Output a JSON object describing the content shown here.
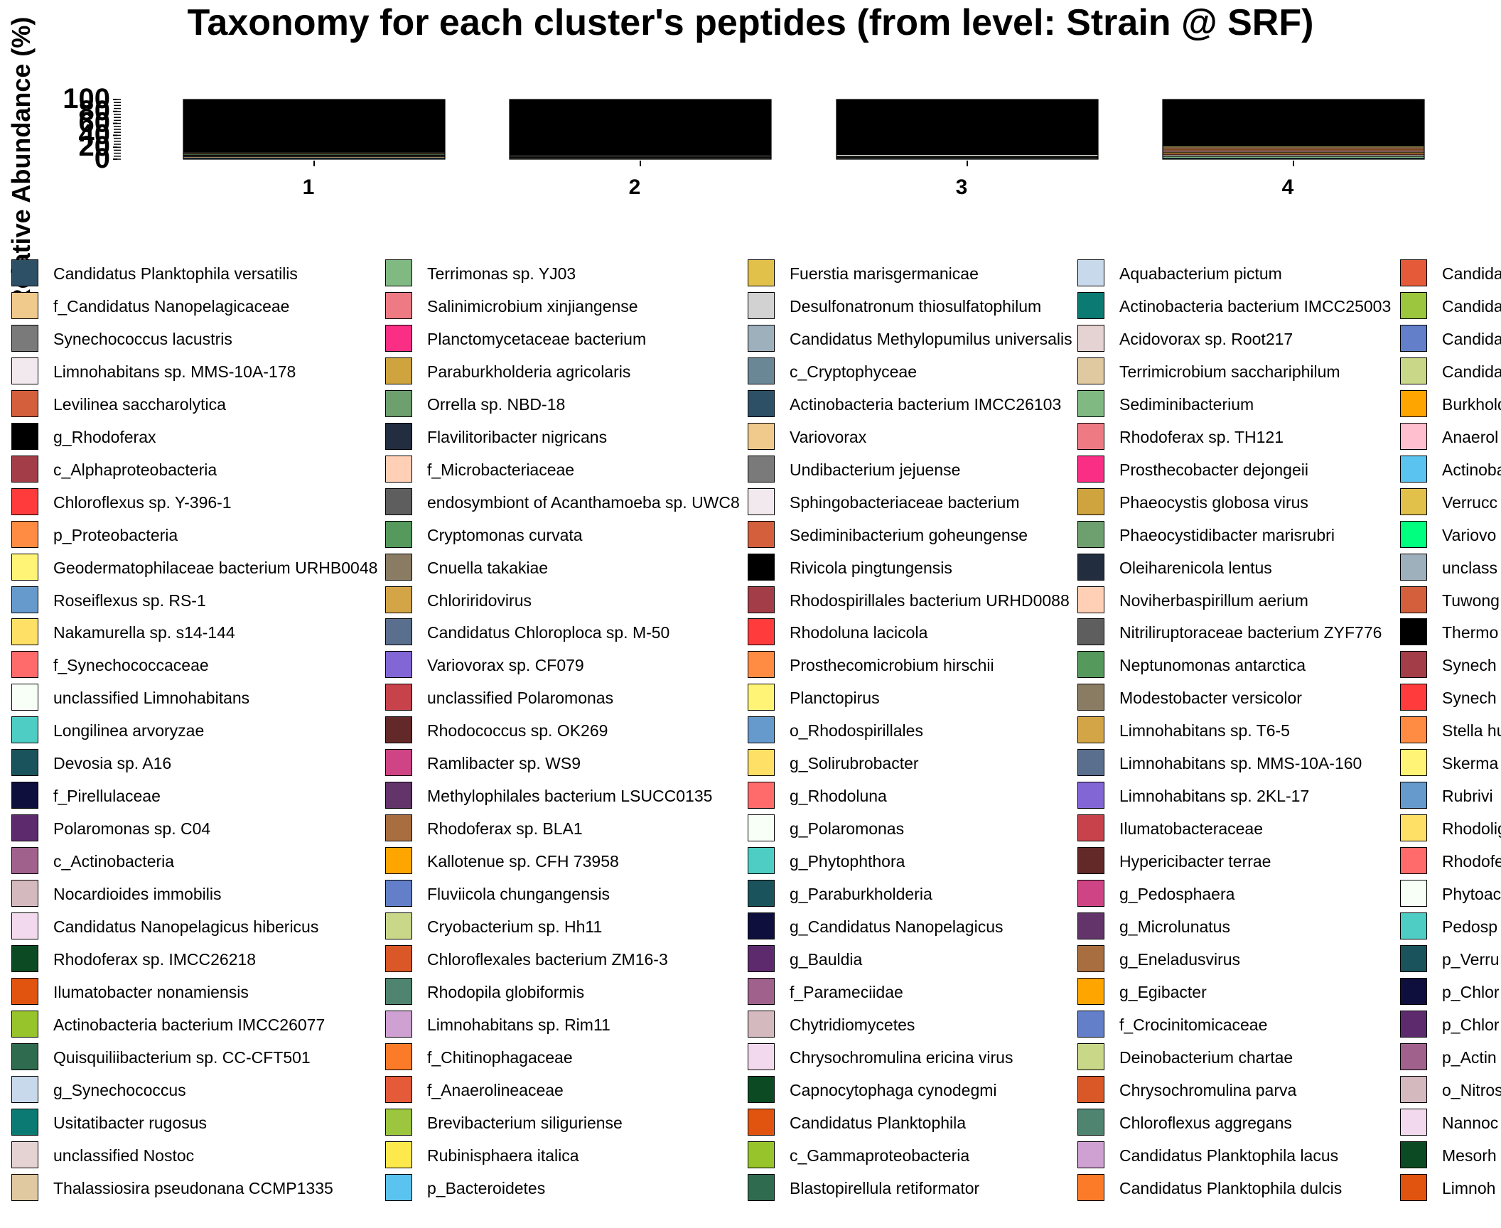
{
  "chart_data": {
    "type": "bar",
    "title": "Taxonomy for each cluster's peptides (from level: Strain @ SRF)",
    "ylabel": "Relative Abundance (%)",
    "xlabel": "",
    "categories": [
      "1",
      "2",
      "3",
      "4"
    ],
    "y_tick_labels": [
      "100",
      "80",
      "60",
      "40",
      "20",
      "0"
    ],
    "ylim": [
      0,
      100
    ],
    "stacked": true,
    "dominant_series": "g_Rhodoferax",
    "bar_stacks": [
      [
        {
          "name": "Candidatus Planktophila versatilis",
          "value": 2.2
        },
        {
          "name": "f_Candidatus Nanopelagicaceae",
          "value": 1.6
        },
        {
          "name": "Synechococcus lacustris",
          "value": 1.2
        },
        {
          "name": "Limnohabitans sp. MMS-10A-178",
          "value": 0.9
        },
        {
          "name": "Levilinea saccharolytica",
          "value": 0.8
        },
        {
          "name": "Terrimonas sp. YJ03",
          "value": 1.5
        },
        {
          "name": "Salinimicrobium xinjiangense",
          "value": 0.9
        },
        {
          "name": "Fuerstia marisgermanicae",
          "value": 1.2
        },
        {
          "name": "Desulfonatronum thiosulfatophilum",
          "value": 1.0
        },
        {
          "name": "Aquabacterium pictum",
          "value": 0.8
        },
        {
          "name": "g_Rhodoferax",
          "value": 87.9
        }
      ],
      [
        {
          "name": "Candidatus Planktophila versatilis",
          "value": 1.4
        },
        {
          "name": "f_Candidatus Nanopelagicaceae",
          "value": 1.2
        },
        {
          "name": "Synechococcus lacustris",
          "value": 0.8
        },
        {
          "name": "Limnohabitans sp. MMS-10A-178",
          "value": 1.0
        },
        {
          "name": "Levilinea saccharolytica",
          "value": 0.6
        },
        {
          "name": "Fuerstia marisgermanicae",
          "value": 0.8
        },
        {
          "name": "Desulfonatronum thiosulfatophilum",
          "value": 0.8
        },
        {
          "name": "Aquabacterium pictum",
          "value": 1.0
        },
        {
          "name": "g_Rhodoferax",
          "value": 92.4
        }
      ],
      [
        {
          "name": "Candidatus Planktophila versatilis",
          "value": 1.6
        },
        {
          "name": "f_Candidatus Nanopelagicaceae",
          "value": 1.0
        },
        {
          "name": "Synechococcus lacustris",
          "value": 1.0
        },
        {
          "name": "Limnohabitans sp. MMS-10A-178",
          "value": 0.8
        },
        {
          "name": "Terrimonas sp. YJ03",
          "value": 1.2
        },
        {
          "name": "Sphingobacteriaceae bacterium",
          "value": 2.0
        },
        {
          "name": "g_Rhodoferax",
          "value": 92.4
        }
      ],
      [
        {
          "name": "Candidatus Planktophila versatilis",
          "value": 2.0
        },
        {
          "name": "Terrimonas sp. YJ03",
          "value": 2.5
        },
        {
          "name": "Synechococcus lacustris",
          "value": 1.5
        },
        {
          "name": "Limnohabitans sp. MMS-10A-178",
          "value": 1.5
        },
        {
          "name": "Levilinea saccharolytica",
          "value": 2.0
        },
        {
          "name": "Fuerstia marisgermanicae",
          "value": 2.0
        },
        {
          "name": "Salinimicrobium xinjiangense",
          "value": 1.5
        },
        {
          "name": "Aquabacterium pictum",
          "value": 1.5
        },
        {
          "name": "p_Proteobacteria",
          "value": 2.0
        },
        {
          "name": "Levilinea saccharolytica",
          "value": 1.5
        },
        {
          "name": "f_Candidatus Nanopelagicaceae",
          "value": 2.0
        },
        {
          "name": "Geodermatophilaceae bacterium URHB0048",
          "value": 1.5
        },
        {
          "name": "g_Rhodoferax",
          "value": 78.5
        }
      ]
    ],
    "legend": [
      [
        {
          "label": "Candidatus Planktophila versatilis",
          "color": "#2e5066"
        },
        {
          "label": "f_Candidatus Nanopelagicaceae",
          "color": "#f0c98c"
        },
        {
          "label": "Synechococcus lacustris",
          "color": "#7a7a7a"
        },
        {
          "label": "Limnohabitans sp. MMS-10A-178",
          "color": "#f2e9ee"
        },
        {
          "label": "Levilinea saccharolytica",
          "color": "#d45f3c"
        },
        {
          "label": "g_Rhodoferax",
          "color": "#000000"
        },
        {
          "label": "c_Alphaproteobacteria",
          "color": "#a33e49"
        },
        {
          "label": "Chloroflexus sp. Y-396-1",
          "color": "#ff3b3b"
        },
        {
          "label": "p_Proteobacteria",
          "color": "#ff8c42"
        },
        {
          "label": "Geodermatophilaceae bacterium URHB0048",
          "color": "#fff475"
        },
        {
          "label": "Roseiflexus sp. RS-1",
          "color": "#6699cc"
        },
        {
          "label": "Nakamurella sp. s14-144",
          "color": "#ffe066"
        },
        {
          "label": "f_Synechococcaceae",
          "color": "#ff6b6b"
        },
        {
          "label": "unclassified Limnohabitans",
          "color": "#f7fff7"
        },
        {
          "label": "Longilinea arvoryzae",
          "color": "#4ecdc4"
        },
        {
          "label": "Devosia sp. A16",
          "color": "#1a535c"
        },
        {
          "label": "f_Pirellulaceae",
          "color": "#0f0f3d"
        },
        {
          "label": "Polaromonas sp. C04",
          "color": "#5e2a6e"
        },
        {
          "label": "c_Actinobacteria",
          "color": "#a0628c"
        },
        {
          "label": "Nocardioides immobilis",
          "color": "#d4b9bf"
        },
        {
          "label": "Candidatus Nanopelagicus hibericus",
          "color": "#f3d9ed"
        },
        {
          "label": "Rhodoferax sp. IMCC26218",
          "color": "#0b4a22"
        },
        {
          "label": "Ilumatobacter nonamiensis",
          "color": "#e0540f"
        },
        {
          "label": "Actinobacteria bacterium IMCC26077",
          "color": "#97c42a"
        },
        {
          "label": "Quisquiliibacterium sp. CC-CFT501",
          "color": "#2f6b4f"
        },
        {
          "label": "g_Synechococcus",
          "color": "#c7d9ea"
        },
        {
          "label": "Usitatibacter rugosus",
          "color": "#0b7a73"
        },
        {
          "label": "unclassified Nostoc",
          "color": "#e5d3d3"
        },
        {
          "label": "Thalassiosira pseudonana CCMP1335",
          "color": "#e0c8a0"
        }
      ],
      [
        {
          "label": "Terrimonas sp. YJ03",
          "color": "#80b981"
        },
        {
          "label": "Salinimicrobium xinjiangense",
          "color": "#ee7b84"
        },
        {
          "label": "Planctomycetaceae bacterium",
          "color": "#fb2e86"
        },
        {
          "label": "Paraburkholderia agricolaris",
          "color": "#cfa43e"
        },
        {
          "label": "Orrella sp. NBD-18",
          "color": "#6e9f6f"
        },
        {
          "label": "Flavilitoribacter nigricans",
          "color": "#222e40"
        },
        {
          "label": "f_Microbacteriaceae",
          "color": "#ffd0b5"
        },
        {
          "label": "endosymbiont of Acanthamoeba sp. UWC8",
          "color": "#5e5e5e"
        },
        {
          "label": "Cryptomonas curvata",
          "color": "#559a5c"
        },
        {
          "label": "Cnuella takakiae",
          "color": "#8a7b63"
        },
        {
          "label": "Chloriridovirus",
          "color": "#d4a547"
        },
        {
          "label": "Candidatus Chloroploca sp. M-50",
          "color": "#5a6f8e"
        },
        {
          "label": "Variovorax sp. CF079",
          "color": "#8266d6"
        },
        {
          "label": "unclassified Polaromonas",
          "color": "#c7424a"
        },
        {
          "label": "Rhodococcus sp. OK269",
          "color": "#632828"
        },
        {
          "label": "Ramlibacter sp. WS9",
          "color": "#cf4485"
        },
        {
          "label": "Methylophilales bacterium LSUCC0135",
          "color": "#62346a"
        },
        {
          "label": "Rhodoferax sp. BLA1",
          "color": "#a86e3f"
        },
        {
          "label": "Kallotenue sp. CFH 73958",
          "color": "#ffa500"
        },
        {
          "label": "Fluviicola chungangensis",
          "color": "#637fc9"
        },
        {
          "label": "Cryobacterium sp. Hh11",
          "color": "#c9d789"
        },
        {
          "label": "Chloroflexales bacterium ZM16-3",
          "color": "#da5727"
        },
        {
          "label": "Rhodopila globiformis",
          "color": "#4f8471"
        },
        {
          "label": "Limnohabitans sp. Rim11",
          "color": "#cfa0d2"
        },
        {
          "label": "f_Chitinophagaceae",
          "color": "#fb7b28"
        },
        {
          "label": "f_Anaerolineaceae",
          "color": "#e55a39"
        },
        {
          "label": "Brevibacterium siliguriense",
          "color": "#9bc63d"
        },
        {
          "label": "Rubinisphaera italica",
          "color": "#fde94c"
        },
        {
          "label": "p_Bacteroidetes",
          "color": "#5bc3ef"
        }
      ],
      [
        {
          "label": "Fuerstia marisgermanicae",
          "color": "#e2c14a"
        },
        {
          "label": "Desulfonatronum thiosulfatophilum",
          "color": "#d2d2d2"
        },
        {
          "label": "Candidatus Methylopumilus universalis",
          "color": "#9fb0bd"
        },
        {
          "label": "c_Cryptophyceae",
          "color": "#6a8796"
        },
        {
          "label": "Actinobacteria bacterium IMCC26103",
          "color": "#2e5066"
        },
        {
          "label": "Variovorax",
          "color": "#f0c98c"
        },
        {
          "label": "Undibacterium jejuense",
          "color": "#7a7a7a"
        },
        {
          "label": "Sphingobacteriaceae bacterium",
          "color": "#f2e9ee"
        },
        {
          "label": "Sediminibacterium goheungense",
          "color": "#d45f3c"
        },
        {
          "label": "Rivicola pingtungensis",
          "color": "#000000"
        },
        {
          "label": "Rhodospirillales bacterium URHD0088",
          "color": "#a33e49"
        },
        {
          "label": "Rhodoluna lacicola",
          "color": "#ff3b3b"
        },
        {
          "label": "Prosthecomicrobium hirschii",
          "color": "#ff8c42"
        },
        {
          "label": "Planctopirus",
          "color": "#fff475"
        },
        {
          "label": "o_Rhodospirillales",
          "color": "#6699cc"
        },
        {
          "label": "g_Solirubrobacter",
          "color": "#ffe066"
        },
        {
          "label": "g_Rhodoluna",
          "color": "#ff6b6b"
        },
        {
          "label": "g_Polaromonas",
          "color": "#f7fff7"
        },
        {
          "label": "g_Phytophthora",
          "color": "#4ecdc4"
        },
        {
          "label": "g_Paraburkholderia",
          "color": "#1a535c"
        },
        {
          "label": "g_Candidatus Nanopelagicus",
          "color": "#0f0f3d"
        },
        {
          "label": "g_Bauldia",
          "color": "#5e2a6e"
        },
        {
          "label": "f_Parameciidae",
          "color": "#a0628c"
        },
        {
          "label": "Chytridiomycetes",
          "color": "#d4b9bf"
        },
        {
          "label": "Chrysochromulina ericina virus",
          "color": "#f3d9ed"
        },
        {
          "label": "Capnocytophaga cynodegmi",
          "color": "#0b4a22"
        },
        {
          "label": "Candidatus Planktophila",
          "color": "#e0540f"
        },
        {
          "label": "c_Gammaproteobacteria",
          "color": "#97c42a"
        },
        {
          "label": "Blastopirellula retiformator",
          "color": "#2f6b4f"
        }
      ],
      [
        {
          "label": "Aquabacterium pictum",
          "color": "#c7d9ea"
        },
        {
          "label": "Actinobacteria bacterium IMCC25003",
          "color": "#0b7a73"
        },
        {
          "label": "Acidovorax sp. Root217",
          "color": "#e5d3d3"
        },
        {
          "label": "Terrimicrobium sacchariphilum",
          "color": "#e0c8a0"
        },
        {
          "label": "Sediminibacterium",
          "color": "#80b981"
        },
        {
          "label": "Rhodoferax sp. TH121",
          "color": "#ee7b84"
        },
        {
          "label": "Prosthecobacter dejongeii",
          "color": "#fb2e86"
        },
        {
          "label": "Phaeocystis globosa virus",
          "color": "#cfa43e"
        },
        {
          "label": "Phaeocystidibacter marisrubri",
          "color": "#6e9f6f"
        },
        {
          "label": "Oleiharenicola lentus",
          "color": "#222e40"
        },
        {
          "label": "Noviherbaspirillum aerium",
          "color": "#ffd0b5"
        },
        {
          "label": "Nitriliruptoraceae bacterium ZYF776",
          "color": "#5e5e5e"
        },
        {
          "label": "Neptunomonas antarctica",
          "color": "#559a5c"
        },
        {
          "label": "Modestobacter versicolor",
          "color": "#8a7b63"
        },
        {
          "label": "Limnohabitans sp. T6-5",
          "color": "#d4a547"
        },
        {
          "label": "Limnohabitans sp. MMS-10A-160",
          "color": "#5a6f8e"
        },
        {
          "label": "Limnohabitans sp. 2KL-17",
          "color": "#8266d6"
        },
        {
          "label": "Ilumatobacteraceae",
          "color": "#c7424a"
        },
        {
          "label": "Hypericibacter terrae",
          "color": "#632828"
        },
        {
          "label": "g_Pedosphaera",
          "color": "#cf4485"
        },
        {
          "label": "g_Microlunatus",
          "color": "#62346a"
        },
        {
          "label": "g_Eneladusvirus",
          "color": "#a86e3f"
        },
        {
          "label": "g_Egibacter",
          "color": "#ffa500"
        },
        {
          "label": "f_Crocinitomicaceae",
          "color": "#637fc9"
        },
        {
          "label": "Deinobacterium chartae",
          "color": "#c9d789"
        },
        {
          "label": "Chrysochromulina parva",
          "color": "#da5727"
        },
        {
          "label": "Chloroflexus aggregans",
          "color": "#4f8471"
        },
        {
          "label": "Candidatus Planktophila lacus",
          "color": "#cfa0d2"
        },
        {
          "label": "Candidatus Planktophila dulcis",
          "color": "#fb7b28"
        }
      ],
      [
        {
          "label": "Candida",
          "color": "#e55a39"
        },
        {
          "label": "Candida",
          "color": "#9bc63d"
        },
        {
          "label": "Candida",
          "color": "#637fc9"
        },
        {
          "label": "Candida",
          "color": "#c9d789"
        },
        {
          "label": "Burkhold",
          "color": "#ffa500"
        },
        {
          "label": "Anaerol",
          "color": "#ffbfcf"
        },
        {
          "label": "Actinoba",
          "color": "#5bc3ef"
        },
        {
          "label": "Verrucc",
          "color": "#e2c14a"
        },
        {
          "label": "Variovo",
          "color": "#00ff7f"
        },
        {
          "label": "unclass",
          "color": "#9fb0bd"
        },
        {
          "label": "Tuwong",
          "color": "#d45f3c"
        },
        {
          "label": "Thermo",
          "color": "#000000"
        },
        {
          "label": "Synech",
          "color": "#a33e49"
        },
        {
          "label": "Synech",
          "color": "#ff3b3b"
        },
        {
          "label": "Stella hu",
          "color": "#ff8c42"
        },
        {
          "label": "Skerma",
          "color": "#fff475"
        },
        {
          "label": "Rubrivi",
          "color": "#6699cc"
        },
        {
          "label": "Rhodolig",
          "color": "#ffe066"
        },
        {
          "label": "Rhodofe",
          "color": "#ff6b6b"
        },
        {
          "label": "Phytoac",
          "color": "#f7fff7"
        },
        {
          "label": "Pedosp",
          "color": "#4ecdc4"
        },
        {
          "label": "p_Verru",
          "color": "#1a535c"
        },
        {
          "label": "p_Chlor",
          "color": "#0f0f3d"
        },
        {
          "label": "p_Chlor",
          "color": "#5e2a6e"
        },
        {
          "label": "p_Actin",
          "color": "#a0628c"
        },
        {
          "label": "o_Nitros",
          "color": "#d4b9bf"
        },
        {
          "label": "Nannoc",
          "color": "#f3d9ed"
        },
        {
          "label": "Mesorh",
          "color": "#0b4a22"
        },
        {
          "label": "Limnoh",
          "color": "#e0540f"
        }
      ]
    ]
  }
}
